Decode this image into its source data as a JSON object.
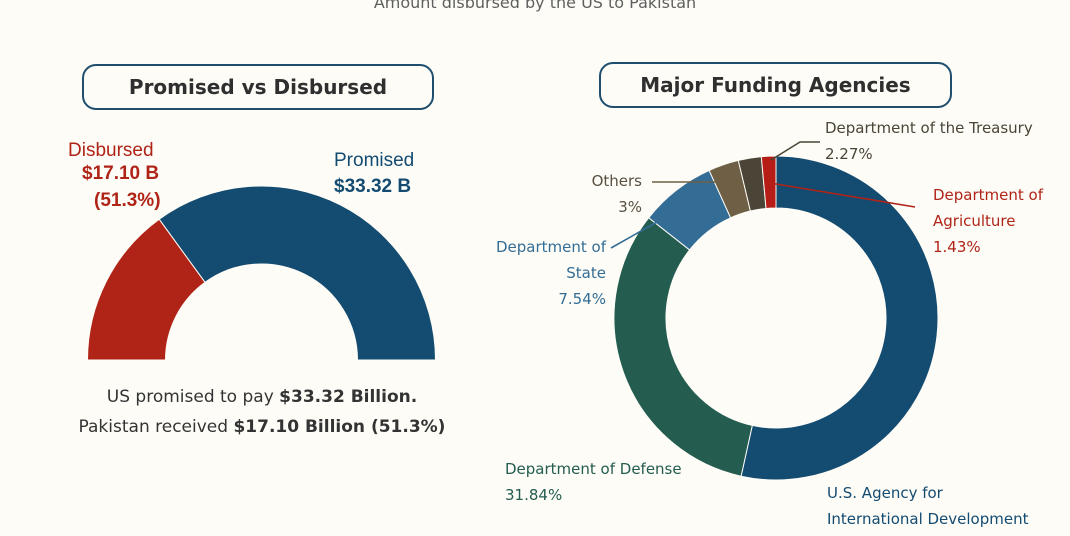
{
  "header": {
    "top_title": "Amount disbursed by the US to Pakistan"
  },
  "gauge_panel": {
    "title": "Promised vs Disbursed",
    "disbursed_label": "Disbursed",
    "disbursed_value": "$17.10 B",
    "disbursed_pct": "(51.3%)",
    "promised_label": "Promised",
    "promised_value": "$33.32 B",
    "summary_line1_text": "US promised to pay ",
    "summary_line1_bold": "$33.32 Billion.",
    "summary_line2_text": "Pakistan received ",
    "summary_line2_bold": "$17.10 Billion (51.3%)"
  },
  "donut_panel": {
    "title": "Major Funding Agencies"
  },
  "chart_data": [
    {
      "type": "gauge",
      "title": "Promised vs Disbursed",
      "series": [
        {
          "name": "Disbursed",
          "value": 17.1,
          "unit": "B",
          "percent": 51.3,
          "color": "#b02418"
        },
        {
          "name": "Promised",
          "value": 33.32,
          "unit": "B",
          "color": "#134b71"
        }
      ],
      "display_fraction_disbursed": 0.3
    },
    {
      "type": "pie",
      "title": "Major Funding Agencies",
      "donut": true,
      "slices": [
        {
          "label": "U.S. Agency for International Development",
          "line1": "U.S. Agency for",
          "line2": "International Development",
          "value": 52.92,
          "pct_label": "",
          "color": "#134b71",
          "label_color": "#134b71"
        },
        {
          "label": "Department of Defense",
          "line1": "Department of Defense",
          "line2": "",
          "value": 31.84,
          "pct_label": "31.84%",
          "color": "#245c50",
          "label_color": "#245c50"
        },
        {
          "label": "Department of State",
          "line1": "Department of",
          "line2": "State",
          "value": 7.54,
          "pct_label": "7.54%",
          "color": "#336d96",
          "label_color": "#336d96"
        },
        {
          "label": "Others",
          "line1": "Others",
          "line2": "",
          "value": 3,
          "pct_label": "3%",
          "color": "#6f6045",
          "label_color": "#5a5040"
        },
        {
          "label": "Department of the Treasury",
          "line1": "Department of the Treasury",
          "line2": "",
          "value": 2.27,
          "pct_label": "2.27%",
          "color": "#4b4537",
          "label_color": "#4b4537"
        },
        {
          "label": "Department of Agriculture",
          "line1": "Department of",
          "line2": "Agriculture",
          "value": 1.43,
          "pct_label": "1.43%",
          "color": "#b51d16",
          "label_color": "#b02418"
        }
      ]
    }
  ]
}
